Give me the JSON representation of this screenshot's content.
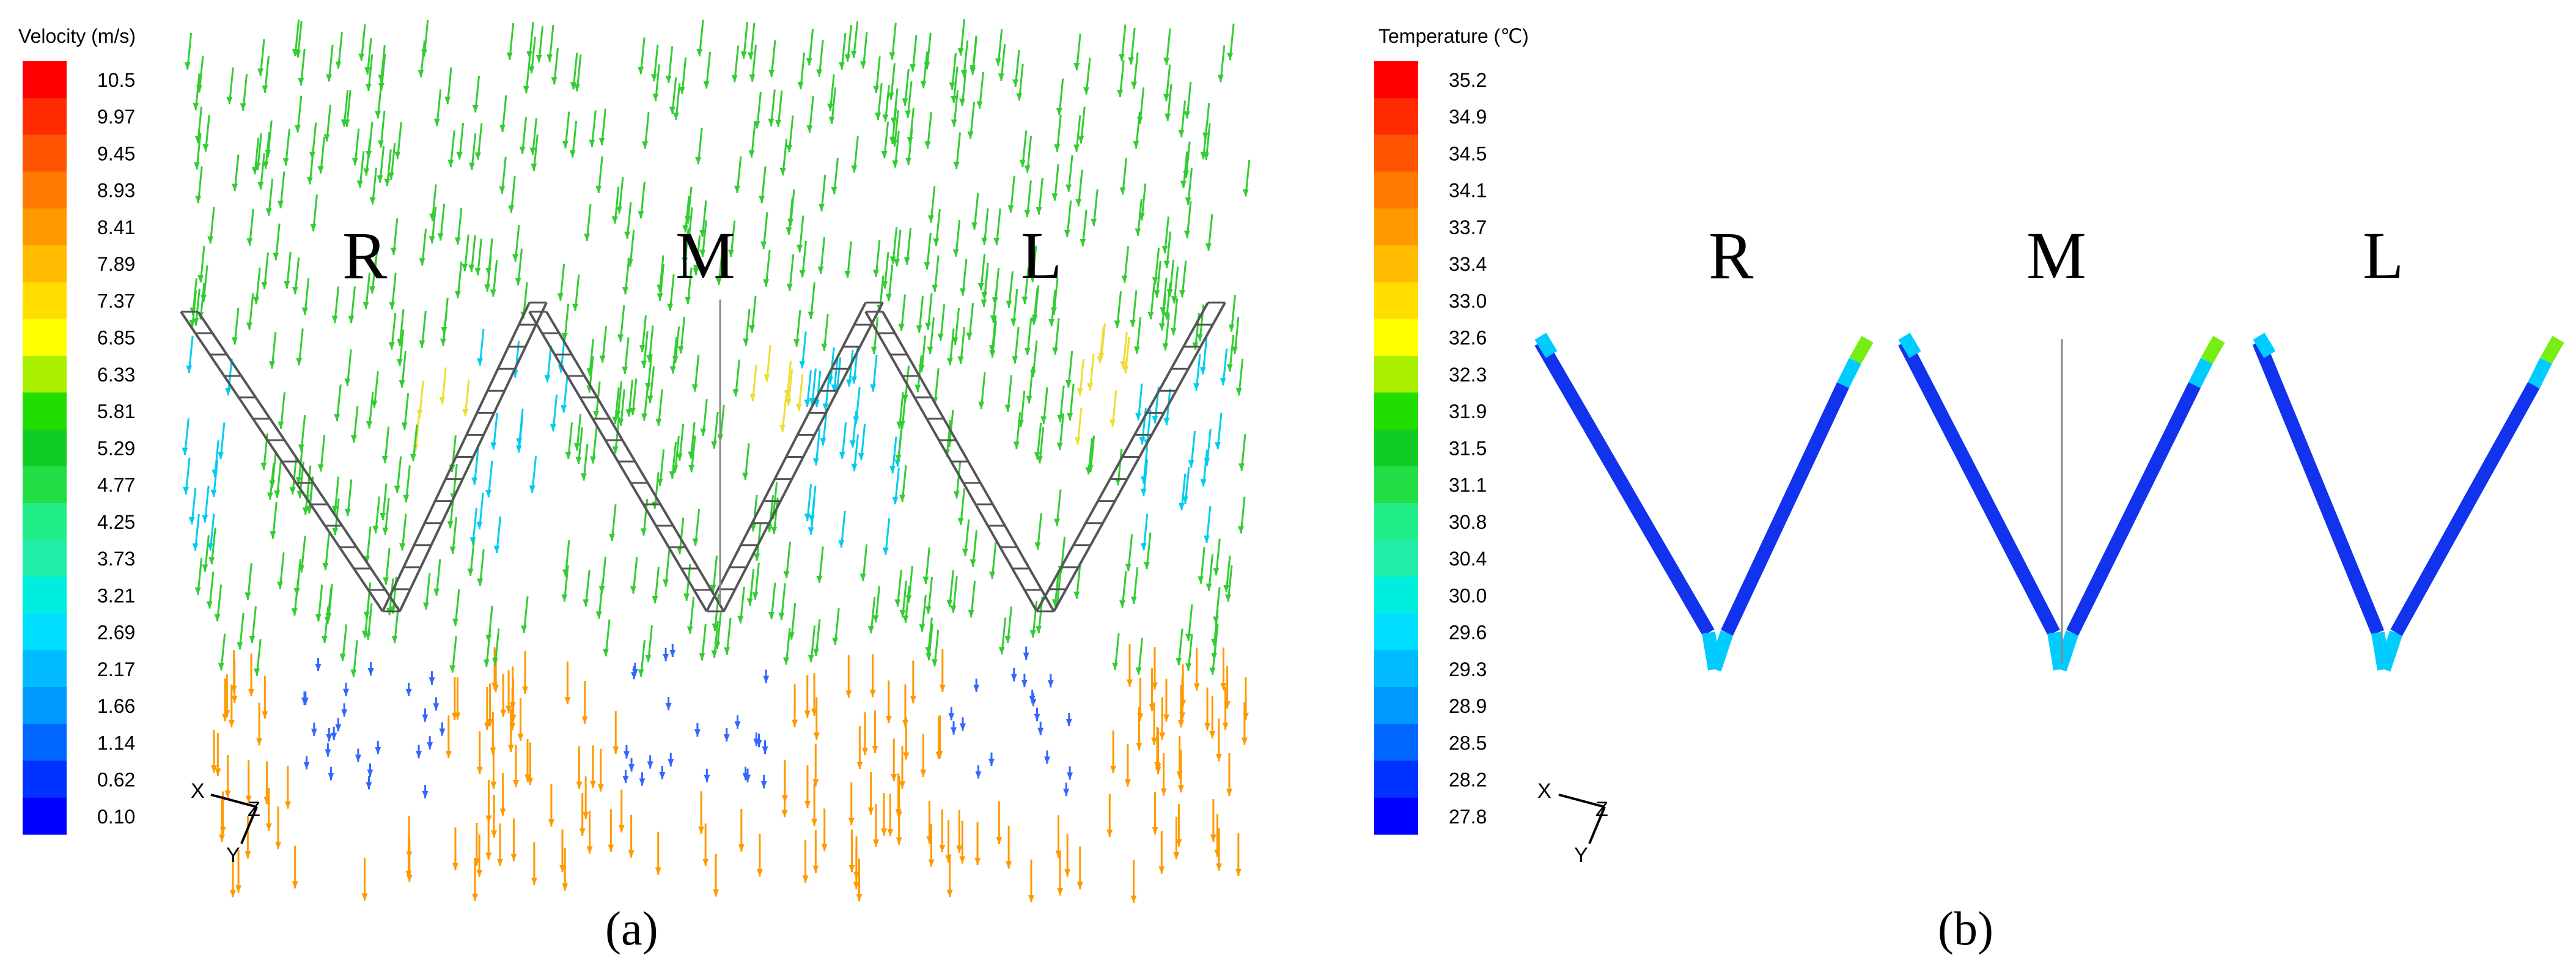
{
  "panel_a": {
    "legend_title": "Velocity (m/s)",
    "legend_values": [
      "10.5",
      "9.97",
      "9.45",
      "8.93",
      "8.41",
      "7.89",
      "7.37",
      "6.85",
      "6.33",
      "5.81",
      "5.29",
      "4.77",
      "4.25",
      "3.73",
      "3.21",
      "2.69",
      "2.17",
      "1.66",
      "1.14",
      "0.62",
      "0.10"
    ],
    "labels": [
      "R",
      "M",
      "L"
    ],
    "caption": "(a)",
    "axis_triad": {
      "x": "X",
      "y": "Y",
      "z": "Z"
    }
  },
  "panel_b": {
    "legend_title": "Temperature (℃)",
    "legend_values": [
      "35.2",
      "34.9",
      "34.5",
      "34.1",
      "33.7",
      "33.4",
      "33.0",
      "32.6",
      "32.3",
      "31.9",
      "31.5",
      "31.1",
      "30.8",
      "30.4",
      "30.0",
      "29.6",
      "29.3",
      "28.9",
      "28.5",
      "28.2",
      "27.8"
    ],
    "labels": [
      "R",
      "M",
      "L"
    ],
    "caption": "(b)",
    "axis_triad": {
      "x": "X",
      "y": "Y",
      "z": "Z"
    }
  },
  "colors": {
    "scale": [
      "#ff0000",
      "#ff2a00",
      "#ff5500",
      "#ff7a00",
      "#ff9900",
      "#ffbb00",
      "#ffdd00",
      "#ffff00",
      "#aaee00",
      "#22dd00",
      "#11cc22",
      "#22dd44",
      "#22ee88",
      "#22eeaa",
      "#00eedd",
      "#00ddff",
      "#00bbff",
      "#0099ff",
      "#0066ff",
      "#0033ff",
      "#0000ff"
    ],
    "velocity_green": "#33cc33",
    "velocity_orange": "#ff9900",
    "velocity_cyan": "#00ccee",
    "velocity_blue": "#3366ff",
    "frame_gray": "#555555",
    "hot_blue": "#1133ee",
    "edge_cyan": "#00ccff",
    "tip_green": "#77ee11"
  }
}
